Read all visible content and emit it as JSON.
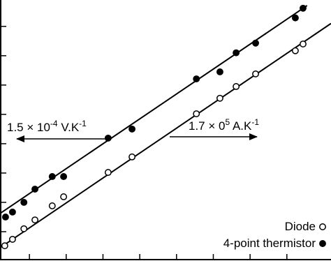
{
  "chart_data": {
    "type": "scatter",
    "xlim": [
      0.2,
      9.2
    ],
    "ylim": [
      0,
      8.9
    ],
    "xticks": [
      1,
      2,
      3,
      4,
      5,
      6,
      7,
      8
    ],
    "yticks": [
      1,
      2,
      3,
      4,
      5,
      6,
      7,
      8
    ],
    "legend": "lower right",
    "series": [
      {
        "name": "Diode",
        "color": "#000000",
        "filled": false,
        "x": [
          0.33,
          0.54,
          0.85,
          1.15,
          1.62,
          1.93,
          3.14,
          3.79,
          5.54,
          6.18,
          6.62,
          7.15,
          8.23,
          8.44
        ],
        "values": [
          0.52,
          0.74,
          1.1,
          1.4,
          1.88,
          2.19,
          3.02,
          3.55,
          5.02,
          5.55,
          5.95,
          6.38,
          7.17,
          7.4
        ],
        "fit_x": [
          0.2,
          9.2
        ],
        "fit_y": [
          0.45,
          8.1
        ]
      },
      {
        "name": "4-point thermistor",
        "color": "#000000",
        "filled": true,
        "x": [
          0.35,
          0.54,
          0.85,
          1.15,
          1.62,
          1.93,
          3.14,
          3.79,
          5.54,
          6.18,
          6.62,
          7.15,
          8.23,
          8.44
        ],
        "values": [
          1.5,
          1.67,
          2.0,
          2.45,
          2.88,
          2.88,
          4.19,
          4.5,
          6.21,
          6.45,
          7.1,
          7.43,
          8.29,
          8.62
        ],
        "fit_x": [
          0.2,
          8.55
        ],
        "fit_y": [
          1.62,
          8.71
        ]
      }
    ],
    "annotations": [
      {
        "parts": [
          "1.5 × 10",
          "-4",
          " V.K",
          "-1"
        ]
      },
      {
        "parts": [
          "1.7 × 0",
          "5",
          " A.K",
          "-1"
        ]
      }
    ]
  }
}
